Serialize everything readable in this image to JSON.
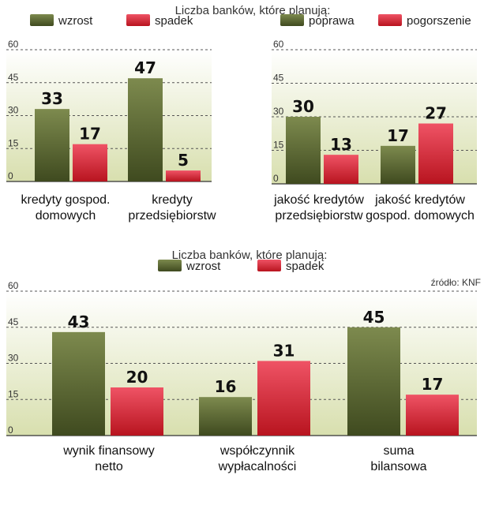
{
  "source": "źródło: KNF",
  "colors": {
    "green_top": "#7d8a4e",
    "green_bottom": "#3f4a1f",
    "red_top": "#ef5365",
    "red_bottom": "#b8141f",
    "bg_top": "#ffffff",
    "bg_bottom": "#d8dfae",
    "grid": "#555555"
  },
  "chart_data": [
    {
      "type": "bar",
      "title": "Liczba banków, które planują:",
      "series": [
        {
          "name": "wzrost",
          "values": [
            33,
            47
          ]
        },
        {
          "name": "spadek",
          "values": [
            17,
            5
          ]
        }
      ],
      "categories": [
        [
          "kredyty gospod.",
          "domowych"
        ],
        [
          "kredyty",
          "przedsiębiorstw"
        ]
      ],
      "yticks": [
        0,
        15,
        30,
        45,
        60
      ],
      "ylim": [
        0,
        60
      ]
    },
    {
      "type": "bar",
      "title": "",
      "series": [
        {
          "name": "poprawa",
          "values": [
            30,
            17
          ]
        },
        {
          "name": "pogorszenie",
          "values": [
            13,
            27
          ]
        }
      ],
      "categories": [
        [
          "jakość kredytów",
          "przedsiębiorstw"
        ],
        [
          "jakość kredytów",
          "gospod. domowych"
        ]
      ],
      "yticks": [
        0,
        15,
        30,
        45,
        60
      ],
      "ylim": [
        0,
        60
      ]
    },
    {
      "type": "bar",
      "title": "Liczba banków, które planują:",
      "series": [
        {
          "name": "wzrost",
          "values": [
            43,
            16,
            45
          ]
        },
        {
          "name": "spadek",
          "values": [
            20,
            31,
            17
          ]
        }
      ],
      "categories": [
        [
          "wynik finansowy",
          "netto"
        ],
        [
          "współczynnik",
          "wypłacalności"
        ],
        [
          "suma",
          "bilansowa"
        ]
      ],
      "yticks": [
        0,
        15,
        30,
        45,
        60
      ],
      "ylim": [
        0,
        60
      ]
    }
  ]
}
